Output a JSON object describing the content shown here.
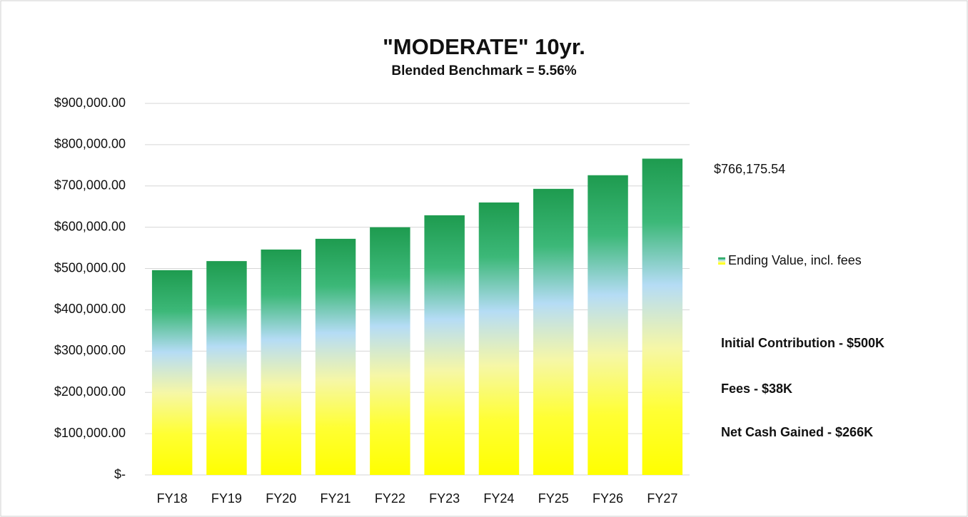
{
  "chart_data": {
    "type": "bar",
    "title": "\"MODERATE\" 10yr.",
    "subtitle": "Blended Benchmark = 5.56%",
    "categories": [
      "FY18",
      "FY19",
      "FY20",
      "FY21",
      "FY22",
      "FY23",
      "FY24",
      "FY25",
      "FY26",
      "FY27"
    ],
    "series": [
      {
        "name": "Ending Value, incl. fees",
        "color": "#23a455",
        "gradient": [
          "#1e9b4f",
          "#3cb878",
          "#b5dcf5",
          "#f6f7a6",
          "#ffff33",
          "#ffff00"
        ],
        "values": [
          496000,
          518000,
          546000,
          572000,
          600000,
          629000,
          660000,
          693000,
          726000,
          766175.54
        ],
        "value_labels": [
          null,
          null,
          null,
          null,
          null,
          null,
          null,
          null,
          null,
          "$766,175.54"
        ]
      }
    ],
    "ylim": [
      0,
      900000
    ],
    "yticks": [
      {
        "value": 0,
        "label": "$-"
      },
      {
        "value": 100000,
        "label": "$100,000.00"
      },
      {
        "value": 200000,
        "label": "$200,000.00"
      },
      {
        "value": 300000,
        "label": "$300,000.00"
      },
      {
        "value": 400000,
        "label": "$400,000.00"
      },
      {
        "value": 500000,
        "label": "$500,000.00"
      },
      {
        "value": 600000,
        "label": "$600,000.00"
      },
      {
        "value": 700000,
        "label": "$700,000.00"
      },
      {
        "value": 800000,
        "label": "$800,000.00"
      },
      {
        "value": 900000,
        "label": "$900,000.00"
      }
    ],
    "grid": true,
    "legend": "right",
    "annotations": [
      "Initial Contribution - $500K",
      "Fees - $38K",
      "Net Cash Gained - $266K"
    ]
  }
}
